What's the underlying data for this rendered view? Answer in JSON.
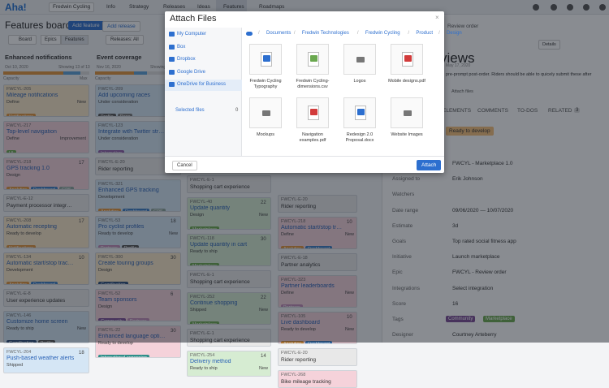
{
  "nav": {
    "logo": "Aha!",
    "workspace": "Fredwin Cycling",
    "items": [
      "Info",
      "Strategy",
      "Releases",
      "Ideas",
      "Features",
      "Roadmaps"
    ]
  },
  "toolbar": {
    "title": "Features board",
    "primary_button": "Add feature",
    "secondary_button": "Add release",
    "view": "Board",
    "tabs": [
      "Epics",
      "Features"
    ],
    "filter": "Releases: All"
  },
  "columns": [
    {
      "name": "Enhanced notifications",
      "date": "Oct 10, 2020",
      "showing": "Showing 13 of 13",
      "capacity": "Capacity",
      "max": "Max",
      "cards": [
        {
          "id": "FWCYL-205",
          "title": "Mileage notifications",
          "status": "Define",
          "badge": "New",
          "color": "#fbe8c8",
          "tags": [
            {
              "label": "Notifications",
              "color": "#e2953a"
            }
          ]
        },
        {
          "id": "FWCYL-217",
          "title": "Top-level navigation",
          "status": "Define",
          "badge": "Improvement",
          "color": "#f5d2da",
          "tags": [
            {
              "label": "UI",
              "color": "#6aa84f"
            }
          ]
        },
        {
          "id": "FWCYL-218",
          "title": "GPS tracking 1.0",
          "status": "Design",
          "score": 17,
          "color": "#f5d2da",
          "tags": [
            {
              "label": "Analytics",
              "color": "#e2953a"
            },
            {
              "label": "Dashboard",
              "color": "#3b7dc4"
            },
            {
              "label": "GPS",
              "color": "#8aa39b"
            }
          ]
        },
        {
          "id": "FWCYL-E-12",
          "title": "Payment processor integrations",
          "color": "#e8e8e8"
        },
        {
          "id": "FWCYL-208",
          "title": "Automatic recepting",
          "status": "Ready to develop",
          "score": 17,
          "color": "#fbe8c8",
          "tags": [
            {
              "label": "Notifications",
              "color": "#e2953a"
            }
          ]
        },
        {
          "id": "FWCYL-134",
          "title": "Automatic start/stop tracking",
          "status": "Development",
          "score": 10,
          "color": "#fbe8c8",
          "tags": [
            {
              "label": "Analytics",
              "color": "#e2953a"
            },
            {
              "label": "Dashboard",
              "color": "#3b7dc4"
            }
          ]
        },
        {
          "id": "FWCYL-E-8",
          "title": "User experience updates",
          "color": "#e8e8e8"
        },
        {
          "id": "FWCYL-146",
          "title": "Customize home screen",
          "status": "Ready to ship",
          "badge": "New",
          "color": "#d5e6f5",
          "tags": [
            {
              "label": "Gamification",
              "color": "#2a4d7a"
            },
            {
              "label": "Profile",
              "color": "#555555"
            }
          ]
        },
        {
          "id": "FWCYL-204",
          "title": "Push-based weather alerts",
          "status": "Shipped",
          "score": 18,
          "color": "#d5e6f5"
        }
      ]
    },
    {
      "name": "Event coverage",
      "date": "Nov 16, 2020",
      "showing": "Showing 11 of 11",
      "capacity": "Capacity",
      "max": "Max",
      "cards": [
        {
          "id": "FWCYL-209",
          "title": "Add upcoming races",
          "status": "Under consideration",
          "badge": "New",
          "color": "#d5e6f5",
          "tags": [
            {
              "label": "Profile",
              "color": "#555555"
            },
            {
              "label": "Race",
              "color": "#777777"
            }
          ]
        },
        {
          "id": "FWCYL-123",
          "title": "Integrate with Twitter stream",
          "status": "Under consideration",
          "color": "#d5e6f5",
          "tags": [
            {
              "label": "Integration",
              "color": "#8e5ca8"
            }
          ]
        },
        {
          "id": "FWCYL-E-20",
          "title": "Rider reporting",
          "color": "#e8e8e8"
        },
        {
          "id": "FWCYL-321",
          "title": "Enhanced GPS tracking",
          "status": "Development",
          "color": "#d5e6f5",
          "tags": [
            {
              "label": "Analytics",
              "color": "#e2953a"
            },
            {
              "label": "Dashboard",
              "color": "#3b7dc4"
            },
            {
              "label": "GPS",
              "color": "#8aa39b"
            }
          ]
        },
        {
          "id": "FWCYL-53",
          "title": "Pro cyclist profiles",
          "status": "Ready to develop",
          "score": 18,
          "badge": "New",
          "color": "#d5e6f5",
          "tags": [
            {
              "label": "Partners",
              "color": "#c08bb6"
            },
            {
              "label": "Profile",
              "color": "#555555"
            }
          ]
        },
        {
          "id": "FWCYL-300",
          "title": "Create touring groups",
          "status": "Design",
          "score": 30,
          "color": "#fbe8c8",
          "tags": [
            {
              "label": "Gamification",
              "color": "#2a4d7a"
            }
          ]
        },
        {
          "id": "FWCYL-52",
          "title": "Team sponsors",
          "status": "Design",
          "score": 6,
          "color": "#f5d2da",
          "tags": [
            {
              "label": "Community",
              "color": "#7b4b94"
            },
            {
              "label": "Partners",
              "color": "#c08bb6"
            }
          ]
        },
        {
          "id": "FWCYL-22",
          "title": "Enhanced language options",
          "status": "Ready to develop",
          "score": 30,
          "color": "#f5d2da",
          "tags": [
            {
              "label": "International expansion",
              "color": "#2f8f8a"
            }
          ]
        }
      ]
    },
    {
      "cards": [
        {
          "id": "FWCYL-E-1",
          "title": "Shopping cart experience",
          "color": "#e8e8e8"
        },
        {
          "id": "FWCYL-40",
          "title": "Update quantity",
          "status": "Design",
          "score": 22,
          "badge": "New",
          "color": "#d6ecd2",
          "tags": [
            {
              "label": "Marketplace",
              "color": "#6aa84f"
            }
          ]
        },
        {
          "id": "FWCYL-118",
          "title": "Update quantity in cart",
          "status": "Ready to ship",
          "score": 30,
          "color": "#d6ecd2",
          "tags": [
            {
              "label": "Marketplace",
              "color": "#6aa84f"
            }
          ]
        },
        {
          "id": "FWCYL-E-1",
          "title": "Shopping cart experience",
          "color": "#e8e8e8"
        },
        {
          "id": "FWCYL-252",
          "title": "Continue shopping",
          "status": "Shipped",
          "score": 22,
          "badge": "New",
          "color": "#d6ecd2",
          "tags": [
            {
              "label": "Marketplace",
              "color": "#6aa84f"
            }
          ]
        },
        {
          "id": "FWCYL-E-1",
          "title": "Shopping cart experience",
          "color": "#e8e8e8"
        },
        {
          "id": "FWCYL-254",
          "title": "Delivery method",
          "status": "Ready to ship",
          "score": 14,
          "badge": "New",
          "color": "#d6ecd2"
        }
      ]
    },
    {
      "cards": [
        {
          "id": "FWCYL-E-20",
          "title": "Rider reporting",
          "color": "#e8e8e8"
        },
        {
          "id": "FWCYL-218",
          "title": "Automatic start/stop tracking",
          "status": "Define",
          "score": 10,
          "badge": "New",
          "color": "#f5d2da",
          "tags": [
            {
              "label": "Analytics",
              "color": "#e2953a"
            },
            {
              "label": "Dashboard",
              "color": "#3b7dc4"
            }
          ]
        },
        {
          "id": "FWCYL-E-18",
          "title": "Partner analytics",
          "color": "#e8e8e8"
        },
        {
          "id": "FWCYL-323",
          "title": "Partner leaderboards",
          "status": "Define",
          "badge": "New",
          "color": "#f5d2da",
          "tags": [
            {
              "label": "Partners",
              "color": "#c08bb6"
            }
          ]
        },
        {
          "id": "FWCYL-105",
          "title": "Live dashboard",
          "status": "Ready to develop",
          "score": 10,
          "badge": "New",
          "color": "#f5d2da",
          "tags": [
            {
              "label": "Analytics",
              "color": "#e2953a"
            },
            {
              "label": "Dashboard",
              "color": "#3b7dc4"
            }
          ]
        },
        {
          "id": "FWCYL-E-20",
          "title": "Rider reporting",
          "color": "#e8e8e8"
        },
        {
          "id": "FWCYL-268",
          "title": "Bike mileage tracking",
          "color": "#f5d2da"
        }
      ]
    }
  ],
  "details": {
    "record": "Review order",
    "heading": "views",
    "date": "May 17, 2020",
    "description": "pre-prompt post-order. Riders should be able to quicely submit these after",
    "attach": "Attach files",
    "details_button": "Details",
    "tabs": [
      "ELEMENTS",
      "COMMENTS",
      "TO-DOS",
      "RELATED"
    ],
    "related_count": 3,
    "status": "Ready to develop",
    "fields": [
      {
        "value": "FWCYL - Marketplace 1.0"
      },
      {
        "label": "Assigned to",
        "value": "Erik Johnson"
      },
      {
        "label": "Watchers"
      },
      {
        "label": "Date range",
        "value": "09/06/2020 — 10/07/2020"
      },
      {
        "label": "Estimate",
        "value": "3d"
      },
      {
        "label": "Goals",
        "value": "Top rated social fitness app"
      },
      {
        "label": "Initiative",
        "value": "Launch marketplace"
      },
      {
        "label": "Epic",
        "value": "FWCYL - Review order"
      },
      {
        "label": "Integrations",
        "value": "Select integration"
      },
      {
        "label": "Score",
        "value": "16"
      },
      {
        "label": "Tags",
        "tags": [
          "Community",
          "Marketplace"
        ]
      },
      {
        "label": "Designer",
        "value": "Courtney Arteberry"
      }
    ]
  },
  "modal": {
    "title": "Attach Files",
    "sources": [
      "My Computer",
      "Box",
      "Dropbox",
      "Google Drive",
      "OneDrive for Business"
    ],
    "selected_label": "Selected files",
    "selected_count": 0,
    "breadcrumb": [
      "Documents",
      "Fredwin Technologies",
      "Fredwin Cycling",
      "Product",
      "Design"
    ],
    "files": [
      {
        "name": "Fredwin Cycling Typography",
        "kind": "word"
      },
      {
        "name": "Fredwin Cycling-dimensions.csv",
        "kind": "csv"
      },
      {
        "name": "Logos",
        "kind": "folder"
      },
      {
        "name": "Mobile designs.pdf",
        "kind": "pdf"
      },
      {
        "name": "Mockups",
        "kind": "folder"
      },
      {
        "name": "Navigation examples.pdf",
        "kind": "pdf"
      },
      {
        "name": "Redesign 2.0 Proposal.docx",
        "kind": "word"
      },
      {
        "name": "Website Images",
        "kind": "folder"
      }
    ],
    "cancel": "Cancel",
    "attach": "Attach"
  }
}
